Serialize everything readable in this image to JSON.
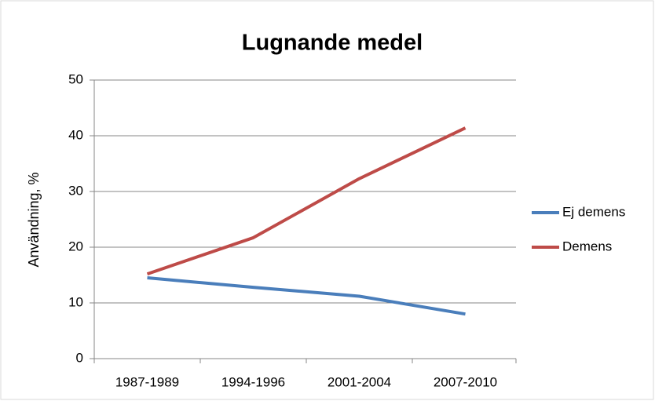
{
  "chart_data": {
    "type": "line",
    "title": "Lugnande medel",
    "y_label": "Användning, %",
    "categories": [
      "1987-1989",
      "1994-1996",
      "2001-2004",
      "2007-2010"
    ],
    "series": [
      {
        "name": "Ej demens",
        "color": "#4a7ebb",
        "values": [
          14.5,
          12.8,
          11.2,
          8.0
        ]
      },
      {
        "name": "Demens",
        "color": "#be4b48",
        "values": [
          15.2,
          21.7,
          32.3,
          41.4
        ]
      }
    ],
    "ylim": [
      0,
      50
    ],
    "yticks": [
      0,
      10,
      20,
      30,
      40,
      50
    ],
    "grid": true,
    "legend": "right"
  }
}
